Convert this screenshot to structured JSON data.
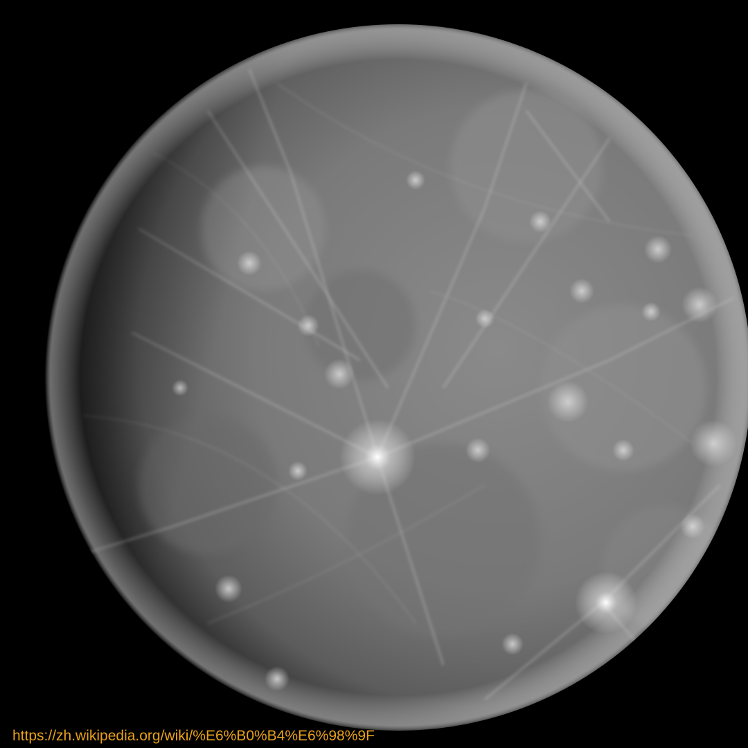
{
  "image": {
    "subject": "planet-mercury-photo",
    "background_color": "#000000",
    "surface_color": "#7d7d7d"
  },
  "caption": {
    "url_text": "https://zh.wikipedia.org/wiki/%E6%B0%B4%E6%98%9F",
    "color": "#e8a11a"
  }
}
